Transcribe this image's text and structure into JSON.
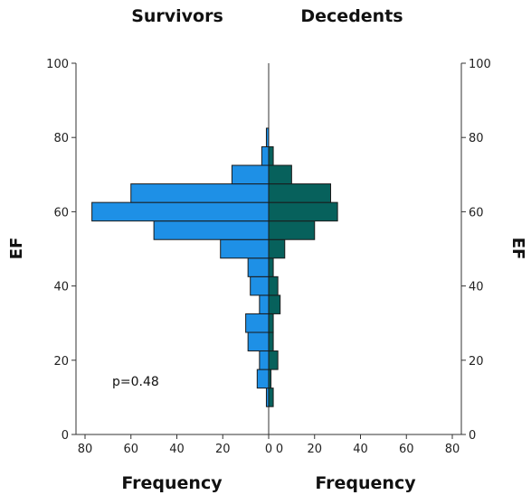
{
  "chart_data": {
    "type": "bar",
    "orientation": "horizontal-back-to-back",
    "groups": [
      {
        "name": "Survivors",
        "color": "#1E90E6",
        "bins": [
          {
            "ef": 10,
            "freq": 1
          },
          {
            "ef": 15,
            "freq": 5
          },
          {
            "ef": 20,
            "freq": 4
          },
          {
            "ef": 25,
            "freq": 9
          },
          {
            "ef": 30,
            "freq": 10
          },
          {
            "ef": 35,
            "freq": 4
          },
          {
            "ef": 40,
            "freq": 8
          },
          {
            "ef": 45,
            "freq": 9
          },
          {
            "ef": 50,
            "freq": 21
          },
          {
            "ef": 55,
            "freq": 50
          },
          {
            "ef": 60,
            "freq": 77
          },
          {
            "ef": 65,
            "freq": 60
          },
          {
            "ef": 70,
            "freq": 16
          },
          {
            "ef": 75,
            "freq": 3
          },
          {
            "ef": 80,
            "freq": 1
          }
        ]
      },
      {
        "name": "Decedents",
        "color": "#07615C",
        "bins": [
          {
            "ef": 10,
            "freq": 2
          },
          {
            "ef": 15,
            "freq": 1
          },
          {
            "ef": 20,
            "freq": 4
          },
          {
            "ef": 25,
            "freq": 2
          },
          {
            "ef": 30,
            "freq": 2
          },
          {
            "ef": 35,
            "freq": 5
          },
          {
            "ef": 40,
            "freq": 4
          },
          {
            "ef": 45,
            "freq": 2
          },
          {
            "ef": 50,
            "freq": 7
          },
          {
            "ef": 55,
            "freq": 20
          },
          {
            "ef": 60,
            "freq": 30
          },
          {
            "ef": 65,
            "freq": 27
          },
          {
            "ef": 70,
            "freq": 10
          },
          {
            "ef": 75,
            "freq": 2
          }
        ]
      }
    ],
    "bin_width": 5,
    "ylabel_left": "EF",
    "ylabel_right": "EF",
    "xlabel_left": "Frequency",
    "xlabel_right": "Frequency",
    "ylim": [
      0,
      100
    ],
    "yticks": [
      "0",
      "20",
      "40",
      "60",
      "80",
      "100"
    ],
    "xlim": [
      0,
      80
    ],
    "xticks_left": [
      "80",
      "60",
      "40",
      "20",
      "0"
    ],
    "xticks_right": [
      "0",
      "20",
      "40",
      "60",
      "80"
    ],
    "annotation": "p=0.48",
    "grid": false,
    "legend": "none"
  }
}
